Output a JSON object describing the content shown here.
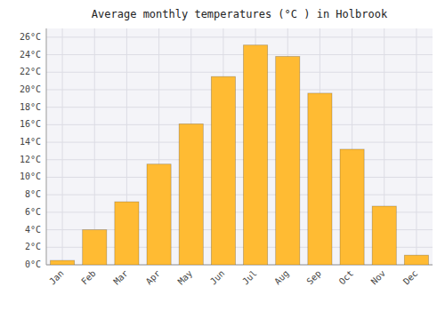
{
  "chart_data": {
    "type": "bar",
    "title": "Average monthly temperatures (°C ) in Holbrook",
    "categories": [
      "Jan",
      "Feb",
      "Mar",
      "Apr",
      "May",
      "Jun",
      "Jul",
      "Aug",
      "Sep",
      "Oct",
      "Nov",
      "Dec"
    ],
    "values": [
      0.5,
      4.0,
      7.2,
      11.5,
      16.1,
      21.5,
      25.1,
      23.8,
      19.6,
      13.2,
      6.7,
      1.1
    ],
    "color": "#FFBB33",
    "ylim": [
      0,
      27
    ],
    "yticks": [
      {
        "value": 0,
        "label": "0°C"
      },
      {
        "value": 2,
        "label": "2°C"
      },
      {
        "value": 4,
        "label": "4°C"
      },
      {
        "value": 6,
        "label": "6°C"
      },
      {
        "value": 8,
        "label": "8°C"
      },
      {
        "value": 10,
        "label": "10°C"
      },
      {
        "value": 12,
        "label": "12°C"
      },
      {
        "value": 14,
        "label": "14°C"
      },
      {
        "value": 16,
        "label": "16°C"
      },
      {
        "value": 18,
        "label": "18°C"
      },
      {
        "value": 20,
        "label": "20°C"
      },
      {
        "value": 22,
        "label": "22°C"
      },
      {
        "value": 24,
        "label": "24°C"
      },
      {
        "value": 26,
        "label": "26°C"
      }
    ],
    "grid": true
  }
}
